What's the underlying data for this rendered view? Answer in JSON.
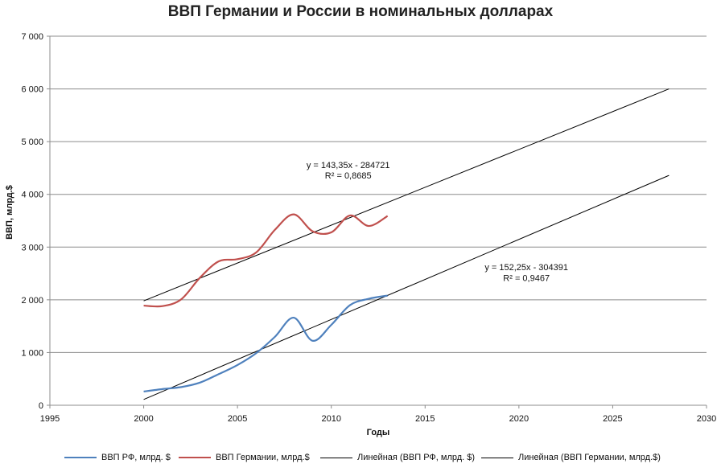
{
  "chart_data": {
    "type": "line",
    "title": "ВВП Германии и России в номинальных долларах",
    "xlabel": "Годы",
    "ylabel": "ВВП, млрд.$",
    "xlim": [
      1995,
      2030
    ],
    "ylim": [
      0,
      7000
    ],
    "x_ticks": [
      1995,
      2000,
      2005,
      2010,
      2015,
      2020,
      2025,
      2030
    ],
    "x_tick_labels": [
      "1995",
      "2000",
      "2005",
      "2010",
      "2015",
      "2020",
      "2025",
      "2030"
    ],
    "y_ticks": [
      0,
      1000,
      2000,
      3000,
      4000,
      5000,
      6000,
      7000
    ],
    "y_tick_labels": [
      "0",
      "1 000",
      "2 000",
      "3 000",
      "4 000",
      "5 000",
      "6 000",
      "7 000"
    ],
    "grid": true,
    "legend_position": "bottom",
    "series": [
      {
        "name": "ВВП РФ, млрд. $",
        "color": "#4f81bd",
        "x": [
          2000,
          2001,
          2002,
          2003,
          2004,
          2005,
          2006,
          2007,
          2008,
          2009,
          2010,
          2011,
          2012,
          2013
        ],
        "values": [
          260,
          307,
          345,
          430,
          591,
          764,
          990,
          1300,
          1661,
          1223,
          1525,
          1900,
          2020,
          2080
        ]
      },
      {
        "name": "ВВП Германии, млрд.$",
        "color": "#c0504d",
        "x": [
          2000,
          2001,
          2002,
          2003,
          2004,
          2005,
          2006,
          2007,
          2008,
          2009,
          2010,
          2011,
          2012,
          2013
        ],
        "values": [
          1890,
          1880,
          2010,
          2420,
          2730,
          2770,
          2900,
          3330,
          3620,
          3300,
          3280,
          3600,
          3400,
          3590
        ]
      }
    ],
    "trendlines": [
      {
        "name": "Линейная (ВВП РФ, млрд. $)",
        "color": "#000000",
        "x_range": [
          2000,
          2028
        ],
        "y_range": [
          110,
          4360
        ],
        "equation": "y = 152,25x - 304391",
        "r2": "R² = 0,9467"
      },
      {
        "name": "Линейная (ВВП Германии, млрд.$)",
        "color": "#000000",
        "x_range": [
          2000,
          2028
        ],
        "y_range": [
          1980,
          6000
        ],
        "equation": "y = 143,35x - 284721",
        "r2": "R² = 0,8685"
      }
    ],
    "annotations": [
      {
        "text": "y = 143,35x - 284721",
        "x": 2010.9,
        "y": 4500
      },
      {
        "text": "R² = 0,8685",
        "x": 2010.9,
        "y": 4300
      },
      {
        "text": "y = 152,25x - 304391",
        "x": 2020.4,
        "y": 2560
      },
      {
        "text": "R² = 0,9467",
        "x": 2020.4,
        "y": 2360
      }
    ]
  }
}
